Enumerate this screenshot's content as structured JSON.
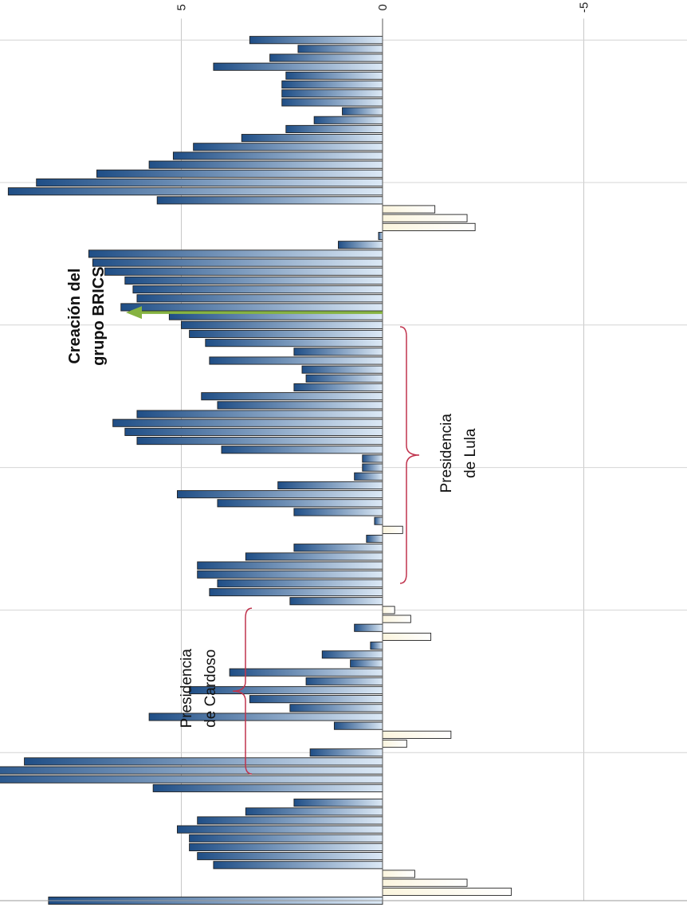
{
  "chart_data": {
    "type": "bar",
    "orientation": "vertical-rotated",
    "title": "",
    "xlabel": "",
    "ylabel": "",
    "ylim": [
      -10,
      15
    ],
    "y_ticks": [
      "15",
      "10",
      "5",
      "0",
      "-5",
      "-10"
    ],
    "x_ticks": [
      "1992",
      "1996",
      "2000",
      "2004",
      "2008",
      "2012",
      "2016"
    ],
    "x_range": [
      1992,
      2016.6
    ],
    "grid": true,
    "bar_gradient_positive": [
      "#1f4e86",
      "#dce9f6"
    ],
    "bar_gradient_negative": [
      "#fbf5de",
      "#ffffff"
    ],
    "gap_year": 1994.85,
    "annotations": {
      "cardoso": [
        "Presidencia",
        "de Cardoso"
      ],
      "lula": [
        "Presidencia",
        "de Lula"
      ],
      "brics": [
        "Creación del",
        "grupo BRICS"
      ]
    },
    "arrow_color": "#86b341",
    "brace_color": "#c0334d",
    "series": [
      {
        "x": [
          1992.0,
          1992.25,
          1992.5,
          1992.75,
          1993.0,
          1993.25,
          1993.5,
          1993.75,
          1994.0,
          1994.25,
          1994.5,
          1994.75,
          1995.0,
          1995.25,
          1995.5,
          1995.75,
          1996.0,
          1996.25,
          1996.5,
          1996.75,
          1997.0,
          1997.25,
          1997.5,
          1997.75,
          1998.0,
          1998.25,
          1998.5,
          1998.75,
          1999.0,
          1999.25,
          1999.5,
          1999.75,
          2000.0,
          2000.25,
          2000.5,
          2000.75,
          2001.0,
          2001.25,
          2001.5,
          2001.75,
          2002.0,
          2002.25,
          2002.5,
          2002.75,
          2003.0,
          2003.25,
          2003.5,
          2003.75,
          2004.0,
          2004.25,
          2004.5,
          2004.75,
          2005.0,
          2005.25,
          2005.5,
          2005.75,
          2006.0,
          2006.25,
          2006.5,
          2006.75,
          2007.0,
          2007.25,
          2007.5,
          2007.75,
          2008.0,
          2008.25,
          2008.5,
          2008.75,
          2009.0,
          2009.25,
          2009.5,
          2009.75,
          2010.0,
          2010.25,
          2010.5,
          2010.75,
          2011.0,
          2011.25,
          2011.5,
          2011.75,
          2012.0,
          2012.25,
          2012.5,
          2012.75,
          2013.0,
          2013.25,
          2013.5,
          2013.75,
          2014.0,
          2014.25,
          2014.5,
          2014.75,
          2015.0,
          2015.25,
          2015.5,
          2015.75,
          2016.0
        ],
        "values": [
          8.3,
          -3.2,
          -2.1,
          -0.8,
          4.2,
          4.6,
          4.8,
          4.8,
          5.1,
          4.6,
          3.4,
          2.2,
          5.7,
          10.2,
          10.5,
          8.9,
          1.8,
          -0.6,
          -1.7,
          1.2,
          5.8,
          2.3,
          3.3,
          4.8,
          1.9,
          3.8,
          0.8,
          1.5,
          0.3,
          -1.2,
          0.7,
          -0.7,
          -0.3,
          2.3,
          4.3,
          4.1,
          4.6,
          4.6,
          3.4,
          2.2,
          0.4,
          -0.5,
          0.2,
          2.2,
          4.1,
          5.1,
          2.6,
          0.7,
          0.5,
          0.5,
          4.0,
          6.1,
          6.4,
          6.7,
          6.1,
          4.1,
          4.5,
          2.2,
          1.9,
          2.0,
          4.3,
          2.2,
          4.4,
          4.8,
          5.0,
          5.3,
          6.5,
          6.1,
          6.2,
          6.4,
          6.9,
          7.2,
          7.3,
          1.1,
          0.1,
          -2.3,
          -2.1,
          -1.3,
          5.6,
          9.3,
          8.6,
          7.1,
          5.8,
          5.2,
          4.7,
          3.5,
          2.4,
          1.7,
          1.0,
          2.5,
          2.5,
          2.5,
          2.4,
          4.2,
          2.8,
          2.1,
          3.3
        ]
      }
    ]
  }
}
